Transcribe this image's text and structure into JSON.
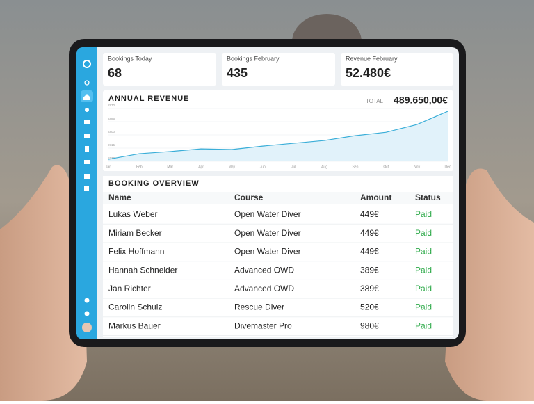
{
  "cards": [
    {
      "label": "Bookings Today",
      "value": 68
    },
    {
      "label": "Bookings February",
      "value": 435
    },
    {
      "label": "Revenue February",
      "value": "52.480€"
    }
  ],
  "revenue": {
    "title": "ANNUAL REVENUE",
    "total_label": "TOTAL",
    "total": "489.650,00€"
  },
  "chart_data": {
    "type": "line",
    "categories": [
      "Jan",
      "Feb",
      "Mar",
      "Apr",
      "May",
      "Jun",
      "Jul",
      "Aug",
      "Sep",
      "Oct",
      "Nov",
      "Dec"
    ],
    "values": [
      643,
      679,
      693,
      710,
      706,
      728,
      746,
      764,
      795,
      817,
      867,
      952
    ],
    "color": "#3aaed8",
    "ylim": [
      630,
      970
    ],
    "yticks": [
      {
        "value": 630,
        "label": "€630"
      },
      {
        "value": 715,
        "label": "€715"
      },
      {
        "value": 800,
        "label": "€800"
      },
      {
        "value": 885,
        "label": "€885"
      },
      {
        "value": 970,
        "label": "€970"
      }
    ],
    "grid": true
  },
  "bookings": {
    "title": "BOOKING OVERVIEW",
    "columns": [
      "Name",
      "Course",
      "Amount",
      "Status"
    ],
    "rows": [
      [
        "Lukas Weber",
        "Open Water Diver",
        "449€",
        "Paid"
      ],
      [
        "Miriam Becker",
        "Open Water Diver",
        "449€",
        "Paid"
      ],
      [
        "Felix Hoffmann",
        "Open Water Diver",
        "449€",
        "Paid"
      ],
      [
        "Hannah Schneider",
        "Advanced OWD",
        "389€",
        "Paid"
      ],
      [
        "Jan Richter",
        "Advanced OWD",
        "389€",
        "Paid"
      ],
      [
        "Carolin Schulz",
        "Rescue Diver",
        "520€",
        "Paid"
      ],
      [
        "Markus Bauer",
        "Divemaster Pro",
        "980€",
        "Paid"
      ]
    ]
  }
}
